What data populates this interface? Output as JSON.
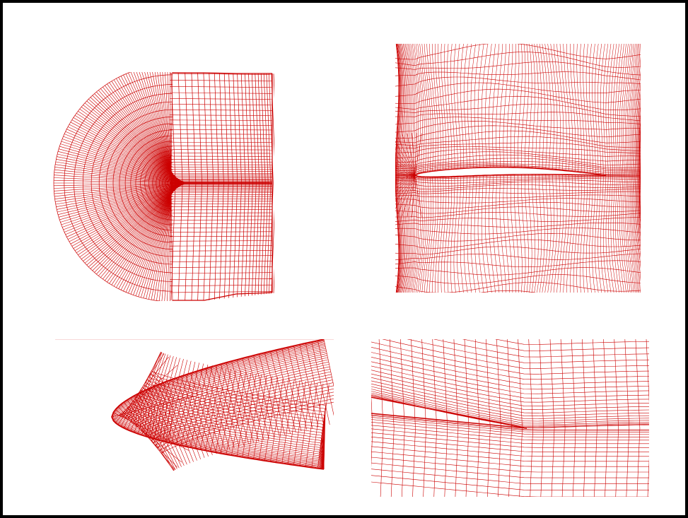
{
  "figure": {
    "background_color": "#ffffff",
    "border_color": "#000000",
    "mesh_color": "#cc0000"
  },
  "panels": [
    {
      "id": "c-grid-mesh",
      "kind": "c-grid"
    },
    {
      "id": "airfoil-mesh",
      "kind": "o-grid-box"
    },
    {
      "id": "leading-edge-zoom",
      "kind": "leading-edge"
    },
    {
      "id": "trailing-edge-zoom",
      "kind": "trailing-edge"
    }
  ]
}
